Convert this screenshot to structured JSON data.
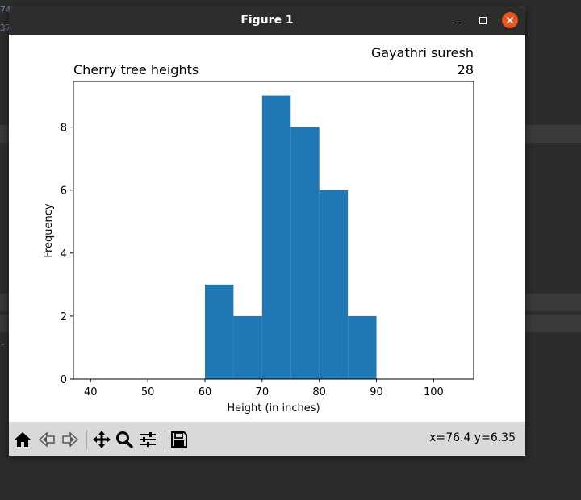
{
  "window": {
    "title": "Figure 1"
  },
  "background_snippets": [
    "74",
    "37",
    "r"
  ],
  "chart_data": {
    "type": "bar",
    "title": "Cherry tree heights",
    "title_right": "Gayathri suresh\n28",
    "title_right_lines": [
      "Gayathri suresh",
      "28"
    ],
    "xlabel": "Height (in inches)",
    "ylabel": "Frequency",
    "xlim": [
      37,
      107
    ],
    "ylim": [
      0,
      9.45
    ],
    "xticks": [
      40,
      50,
      60,
      70,
      80,
      90,
      100
    ],
    "yticks": [
      0,
      2,
      4,
      6,
      8
    ],
    "bins": [
      [
        60,
        65
      ],
      [
        65,
        70
      ],
      [
        70,
        75
      ],
      [
        75,
        80
      ],
      [
        80,
        85
      ],
      [
        85,
        90
      ]
    ],
    "values": [
      3,
      2,
      9,
      8,
      6,
      2
    ],
    "bar_color": "#1f77b4",
    "grid": false
  },
  "toolbar": {
    "items": [
      "home-icon",
      "back-icon",
      "forward-icon",
      "pan-icon",
      "zoom-icon",
      "configure-subplots-icon",
      "save-icon"
    ],
    "coordinates": "x=76.4 y=6.35"
  }
}
